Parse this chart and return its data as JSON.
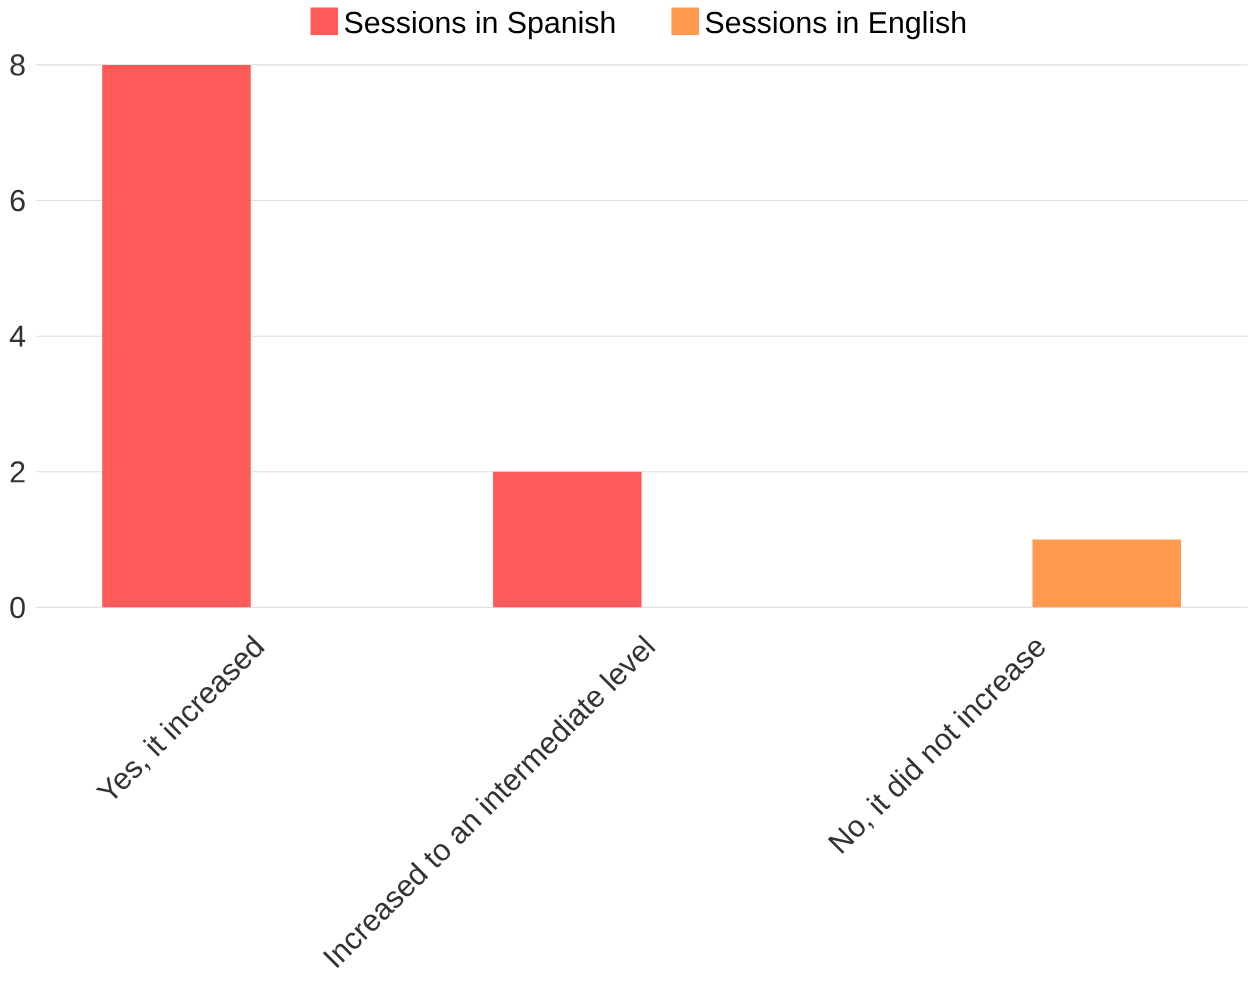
{
  "chart_data": {
    "type": "bar",
    "categories": [
      "Yes, it increased",
      "Increased to an intermediate level",
      "No, it did not increase"
    ],
    "series": [
      {
        "name": "Sessions in Spanish",
        "color": "#ff5a5a",
        "values": [
          8,
          2,
          0
        ]
      },
      {
        "name": "Sessions in English",
        "color": "#ff9a4f",
        "values": [
          0,
          0,
          1
        ]
      }
    ],
    "ylim": [
      0,
      8
    ],
    "yticks": [
      0,
      2,
      4,
      6,
      8
    ],
    "grid": "y",
    "legend": "top"
  }
}
